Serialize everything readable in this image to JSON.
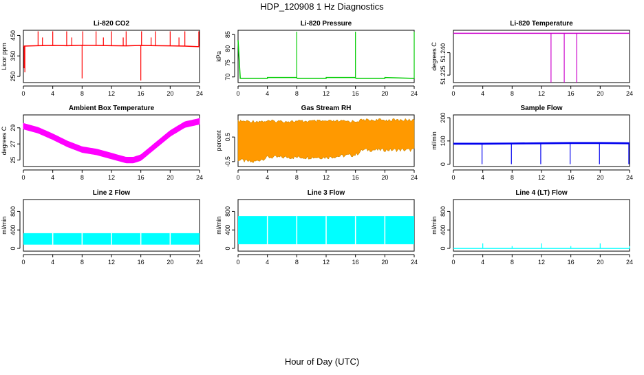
{
  "figure": {
    "title": "HDP_120908  1 Hz Diagnostics",
    "xlabel": "Hour of Day (UTC)"
  },
  "chart_data": [
    {
      "type": "line",
      "title": "Li-820 CO2",
      "ylabel": "Licor ppm",
      "color": "#ff0000",
      "xlim": [
        0,
        24
      ],
      "ylim": [
        220,
        475
      ],
      "xticks": [
        0,
        4,
        8,
        12,
        16,
        20,
        24
      ],
      "yticks": [
        250,
        350,
        450
      ],
      "yticklabels": [
        "250",
        "350",
        "450"
      ],
      "baseline": {
        "x": [
          0,
          2,
          4,
          6,
          8,
          10,
          12,
          14,
          16,
          18,
          20,
          22,
          24
        ],
        "y": [
          398,
          400,
          401,
          400,
          402,
          401,
          400,
          399,
          401,
          400,
          399,
          398,
          395
        ]
      },
      "spikes": [
        {
          "x": 0.1,
          "y": 290
        },
        {
          "x": 0.2,
          "y": 270
        },
        {
          "x": 2.0,
          "y": 470
        },
        {
          "x": 2.6,
          "y": 440
        },
        {
          "x": 4.0,
          "y": 470
        },
        {
          "x": 5.9,
          "y": 470
        },
        {
          "x": 6.6,
          "y": 440
        },
        {
          "x": 8.0,
          "y": 240
        },
        {
          "x": 8.1,
          "y": 470
        },
        {
          "x": 9.9,
          "y": 470
        },
        {
          "x": 10.9,
          "y": 440
        },
        {
          "x": 12.0,
          "y": 470
        },
        {
          "x": 13.6,
          "y": 440
        },
        {
          "x": 14.0,
          "y": 470
        },
        {
          "x": 16.0,
          "y": 230
        },
        {
          "x": 16.1,
          "y": 470
        },
        {
          "x": 17.4,
          "y": 440
        },
        {
          "x": 18.0,
          "y": 470
        },
        {
          "x": 20.0,
          "y": 470
        },
        {
          "x": 21.2,
          "y": 440
        },
        {
          "x": 22.0,
          "y": 470
        },
        {
          "x": 23.9,
          "y": 470
        }
      ]
    },
    {
      "type": "line",
      "title": "Li-820 Pressure",
      "ylabel": "kPa",
      "color": "#00cc00",
      "xlim": [
        0,
        24
      ],
      "ylim": [
        68,
        86.5
      ],
      "xticks": [
        0,
        4,
        8,
        12,
        16,
        20,
        24
      ],
      "yticks": [
        70,
        75,
        80,
        85
      ],
      "yticklabels": [
        "70",
        "75",
        "80",
        "85"
      ],
      "baseline": {
        "x": [
          0,
          0.3,
          4,
          4.01,
          7.9,
          8.1,
          12,
          12.01,
          15.9,
          16.1,
          20,
          20.01,
          23.8,
          24
        ],
        "y": [
          83,
          69.5,
          69.5,
          69.8,
          69.8,
          69.5,
          69.5,
          69.8,
          69.8,
          69.5,
          69.5,
          69.8,
          69.5,
          69.5
        ]
      },
      "spikes": [
        {
          "x": 0.0,
          "y": 83
        },
        {
          "x": 8.0,
          "y": 86
        },
        {
          "x": 16.0,
          "y": 86
        },
        {
          "x": 24.0,
          "y": 86
        }
      ]
    },
    {
      "type": "line",
      "title": "Li-820 Temperature",
      "ylabel": "degrees C",
      "color": "#cc00cc",
      "xlim": [
        0,
        24
      ],
      "ylim": [
        51.22,
        51.255
      ],
      "xticks": [
        0,
        4,
        8,
        12,
        16,
        20,
        24
      ],
      "yticks": [
        51.225,
        51.24
      ],
      "yticklabels": [
        "51.225",
        "51.240"
      ],
      "baseline": {
        "x": [
          0,
          24
        ],
        "y": [
          51.253,
          51.253
        ]
      },
      "spikes": [
        {
          "x": 13.3,
          "y": 51.22
        },
        {
          "x": 15.1,
          "y": 51.22
        },
        {
          "x": 16.8,
          "y": 51.22
        }
      ]
    },
    {
      "type": "area",
      "title": "Ambient Box Temperature",
      "ylabel": "degrees C",
      "color": "#ff00ff",
      "xlim": [
        0,
        24
      ],
      "ylim": [
        24.2,
        30.6
      ],
      "xticks": [
        0,
        4,
        8,
        12,
        16,
        20,
        24
      ],
      "yticks": [
        25,
        27,
        29
      ],
      "yticklabels": [
        "25",
        "27",
        "29"
      ],
      "center": {
        "x": [
          0,
          2,
          4,
          6,
          8,
          10,
          12,
          14,
          15,
          16,
          18,
          20,
          22,
          24
        ],
        "y": [
          29.2,
          28.7,
          27.9,
          27.0,
          26.3,
          26.0,
          25.5,
          25.0,
          25.0,
          25.3,
          26.8,
          28.3,
          29.4,
          29.8
        ]
      },
      "band": 0.35
    },
    {
      "type": "area",
      "title": "Gas Stream RH",
      "ylabel": "percent",
      "color": "#ff9900",
      "xlim": [
        0,
        24
      ],
      "ylim": [
        -0.7,
        1.4
      ],
      "xticks": [
        0,
        4,
        8,
        12,
        16,
        20,
        24
      ],
      "yticks": [
        -0.5,
        0.5
      ],
      "yticklabels": [
        "-0.5",
        "0.5"
      ],
      "upper": {
        "x": [
          0,
          4,
          8,
          12,
          16,
          17,
          20,
          24
        ],
        "y": [
          1.2,
          1.2,
          1.2,
          1.2,
          1.2,
          1.25,
          1.25,
          1.25
        ]
      },
      "lower": {
        "x": [
          0,
          2,
          4,
          8,
          12,
          16,
          17,
          20,
          24
        ],
        "y": [
          -0.5,
          -0.6,
          -0.4,
          -0.4,
          -0.4,
          -0.3,
          -0.1,
          -0.1,
          -0.1
        ]
      }
    },
    {
      "type": "line",
      "title": "Sample Flow",
      "ylabel": "ml/min",
      "color": "#0000ee",
      "xlim": [
        0,
        24
      ],
      "ylim": [
        -10,
        212
      ],
      "xticks": [
        0,
        4,
        8,
        12,
        16,
        20,
        24
      ],
      "yticks": [
        0,
        100,
        200
      ],
      "yticklabels": [
        "0",
        "100",
        "200"
      ],
      "baseline": {
        "x": [
          0,
          4,
          8,
          12,
          16,
          20,
          24
        ],
        "y": [
          88,
          88,
          89,
          90,
          91,
          91,
          90
        ]
      },
      "band": 4,
      "spikes": [
        {
          "x": 3.9,
          "y": 0
        },
        {
          "x": 7.9,
          "y": 0
        },
        {
          "x": 11.9,
          "y": 0
        },
        {
          "x": 15.9,
          "y": 0
        },
        {
          "x": 19.9,
          "y": 0
        },
        {
          "x": 23.9,
          "y": 0
        }
      ]
    },
    {
      "type": "area",
      "title": "Line 2 Flow",
      "ylabel": "ml/min",
      "color": "#00ffff",
      "xlim": [
        0,
        24
      ],
      "ylim": [
        -60,
        1060
      ],
      "xticks": [
        0,
        4,
        8,
        12,
        16,
        20,
        24
      ],
      "yticks": [
        0,
        400,
        800
      ],
      "yticklabels": [
        "0",
        "400",
        "800"
      ],
      "lower": 80,
      "upper": 330,
      "gaps": [
        4,
        8,
        12,
        16,
        20
      ]
    },
    {
      "type": "area",
      "title": "Line 3 Flow",
      "ylabel": "ml/min",
      "color": "#00ffff",
      "xlim": [
        0,
        24
      ],
      "ylim": [
        -60,
        1060
      ],
      "xticks": [
        0,
        4,
        8,
        12,
        16,
        20,
        24
      ],
      "yticks": [
        0,
        400,
        800
      ],
      "yticklabels": [
        "0",
        "400",
        "800"
      ],
      "lower": 90,
      "upper": 700,
      "gaps": [
        4,
        8,
        12,
        16,
        20
      ]
    },
    {
      "type": "line",
      "title": "Line 4 (LT) Flow",
      "ylabel": "ml/min",
      "color": "#00ffff",
      "xlim": [
        0,
        24
      ],
      "ylim": [
        -60,
        1060
      ],
      "xticks": [
        0,
        4,
        8,
        12,
        16,
        20,
        24
      ],
      "yticks": [
        0,
        400,
        800
      ],
      "yticklabels": [
        "0",
        "400",
        "800"
      ],
      "baseline": {
        "x": [
          0,
          24
        ],
        "y": [
          0,
          0
        ]
      },
      "spikes": [
        {
          "x": 4.0,
          "y": 110
        },
        {
          "x": 8.0,
          "y": 50
        },
        {
          "x": 12.0,
          "y": 110
        },
        {
          "x": 16.0,
          "y": 50
        },
        {
          "x": 20.0,
          "y": 110
        },
        {
          "x": 24.0,
          "y": 50
        }
      ]
    }
  ]
}
